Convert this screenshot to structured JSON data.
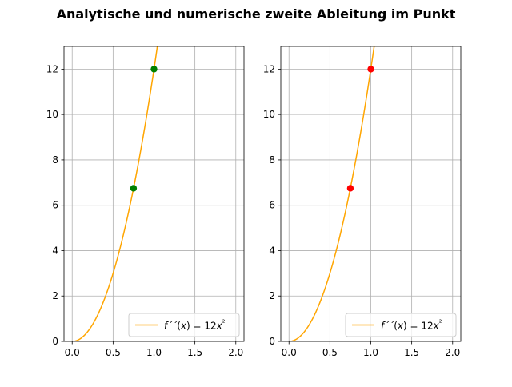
{
  "figure_title": "Analytische und numerische zweite Ableitung im Punkt",
  "chart_data": [
    {
      "type": "line",
      "title": "",
      "xlabel": "",
      "ylabel": "",
      "xlim": [
        -0.1,
        2.1
      ],
      "ylim": [
        0,
        13
      ],
      "xticks": [
        "0.0",
        "0.5",
        "1.0",
        "1.5",
        "2.0"
      ],
      "yticks": [
        "0",
        "2",
        "4",
        "6",
        "8",
        "10",
        "12"
      ],
      "grid": true,
      "legend": "lower-right",
      "series": [
        {
          "name": "f´´(x) = 12x²",
          "color": "#ffa500",
          "function": "12*x^2",
          "x": [
            0.0,
            0.1,
            0.2,
            0.3,
            0.4,
            0.5,
            0.6,
            0.7,
            0.75,
            0.8,
            0.9,
            1.0,
            1.04
          ],
          "y": [
            0.0,
            0.12,
            0.48,
            1.08,
            1.92,
            3.0,
            4.32,
            5.88,
            6.75,
            7.68,
            9.72,
            12.0,
            12.98
          ]
        }
      ],
      "points": [
        {
          "x": 0.75,
          "y": 6.75,
          "color": "#008000"
        },
        {
          "x": 1.0,
          "y": 12.0,
          "color": "#008000"
        }
      ]
    },
    {
      "type": "line",
      "title": "",
      "xlabel": "",
      "ylabel": "",
      "xlim": [
        -0.1,
        2.1
      ],
      "ylim": [
        0,
        13
      ],
      "xticks": [
        "0.0",
        "0.5",
        "1.0",
        "1.5",
        "2.0"
      ],
      "yticks": [
        "0",
        "2",
        "4",
        "6",
        "8",
        "10",
        "12"
      ],
      "grid": true,
      "legend": "lower-right",
      "series": [
        {
          "name": "f´´(x) = 12x²",
          "color": "#ffa500",
          "function": "12*x^2",
          "x": [
            0.0,
            0.1,
            0.2,
            0.3,
            0.4,
            0.5,
            0.6,
            0.7,
            0.75,
            0.8,
            0.9,
            1.0,
            1.04
          ],
          "y": [
            0.0,
            0.12,
            0.48,
            1.08,
            1.92,
            3.0,
            4.32,
            5.88,
            6.75,
            7.68,
            9.72,
            12.0,
            12.98
          ]
        }
      ],
      "points": [
        {
          "x": 0.75,
          "y": 6.75,
          "color": "#ff0000"
        },
        {
          "x": 1.0,
          "y": 12.0,
          "color": "#ff0000"
        }
      ]
    }
  ]
}
